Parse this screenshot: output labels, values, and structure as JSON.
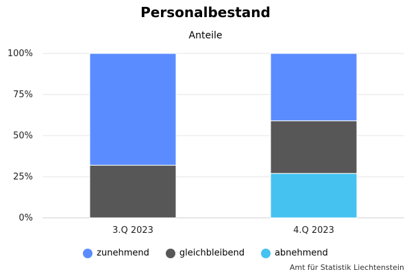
{
  "chart_data": {
    "type": "bar",
    "stacked": true,
    "title": "Personalbestand",
    "subtitle": "Anteile",
    "categories": [
      "3.Q 2023",
      "4.Q 2023"
    ],
    "series": [
      {
        "name": "abnehmend",
        "values": [
          0,
          27
        ],
        "color": "#45C2F0"
      },
      {
        "name": "gleichbleibend",
        "values": [
          32,
          32
        ],
        "color": "#575757"
      },
      {
        "name": "zunehmend",
        "values": [
          68,
          41
        ],
        "color": "#5B8CFF"
      }
    ],
    "legend_order": [
      "zunehmend",
      "gleichbleibend",
      "abnehmend"
    ],
    "ylim": [
      0,
      100
    ],
    "yticks": [
      "0%",
      "25%",
      "50%",
      "75%",
      "100%"
    ],
    "ytick_values": [
      0,
      25,
      50,
      75,
      100
    ],
    "grid": true,
    "legend_position": "bottom"
  },
  "source": "Amt für Statistik Liechtenstein"
}
